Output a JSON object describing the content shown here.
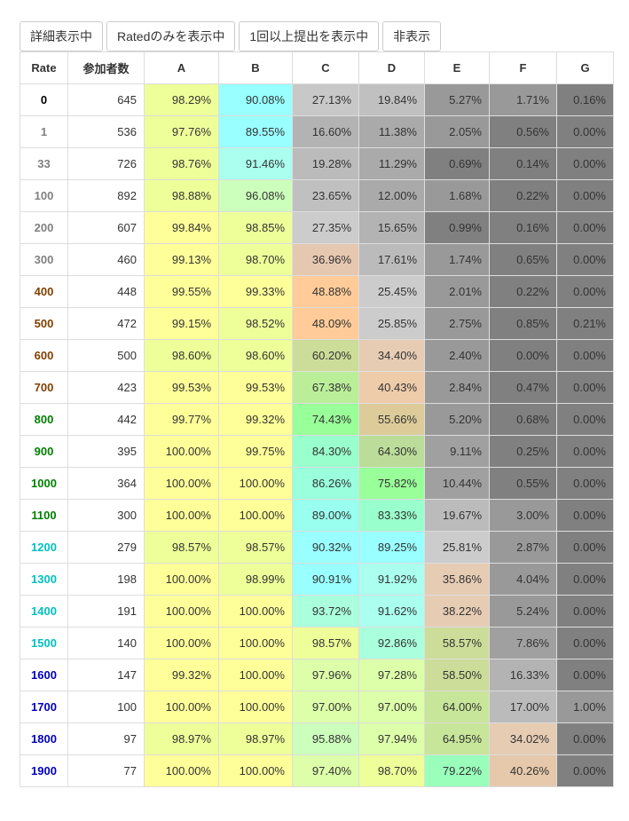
{
  "toolbar": {
    "buttons": [
      {
        "label": "詳細表示中",
        "active": false
      },
      {
        "label": "Ratedのみを表示中",
        "active": false
      },
      {
        "label": "1回以上提出を表示中",
        "active": false
      },
      {
        "label": "非表示",
        "active": false
      }
    ]
  },
  "table": {
    "headers": [
      "Rate",
      "参加者数",
      "A",
      "B",
      "C",
      "D",
      "E",
      "F",
      "G"
    ],
    "rows": [
      {
        "rate": "0",
        "rate_color": "#000000",
        "count": "645",
        "cells": [
          [
            "98.29%",
            "#eeff99"
          ],
          [
            "90.08%",
            "#99ffff"
          ],
          [
            "27.13%",
            "#c8c8c8"
          ],
          [
            "19.84%",
            "#c0c0c0"
          ],
          [
            "5.27%",
            "#999999"
          ],
          [
            "1.71%",
            "#999999"
          ],
          [
            "0.16%",
            "#808080"
          ]
        ]
      },
      {
        "rate": "1",
        "rate_color": "#808080",
        "count": "536",
        "cells": [
          [
            "97.76%",
            "#eeff99"
          ],
          [
            "89.55%",
            "#99ffff"
          ],
          [
            "16.60%",
            "#b3b3b3"
          ],
          [
            "11.38%",
            "#aaaaaa"
          ],
          [
            "2.05%",
            "#999999"
          ],
          [
            "0.56%",
            "#808080"
          ],
          [
            "0.00%",
            "#808080"
          ]
        ]
      },
      {
        "rate": "33",
        "rate_color": "#808080",
        "count": "726",
        "cells": [
          [
            "98.76%",
            "#eeff99"
          ],
          [
            "91.46%",
            "#aaffee"
          ],
          [
            "19.28%",
            "#bbbbbb"
          ],
          [
            "11.29%",
            "#aaaaaa"
          ],
          [
            "0.69%",
            "#808080"
          ],
          [
            "0.14%",
            "#808080"
          ],
          [
            "0.00%",
            "#808080"
          ]
        ]
      },
      {
        "rate": "100",
        "rate_color": "#808080",
        "count": "892",
        "cells": [
          [
            "98.88%",
            "#eeff99"
          ],
          [
            "96.08%",
            "#ccffbb"
          ],
          [
            "23.65%",
            "#c0c0c0"
          ],
          [
            "12.00%",
            "#aaaaaa"
          ],
          [
            "1.68%",
            "#999999"
          ],
          [
            "0.22%",
            "#808080"
          ],
          [
            "0.00%",
            "#808080"
          ]
        ]
      },
      {
        "rate": "200",
        "rate_color": "#808080",
        "count": "607",
        "cells": [
          [
            "99.84%",
            "#ffff99"
          ],
          [
            "98.85%",
            "#eeff99"
          ],
          [
            "27.35%",
            "#cccccc"
          ],
          [
            "15.65%",
            "#b3b3b3"
          ],
          [
            "0.99%",
            "#808080"
          ],
          [
            "0.16%",
            "#808080"
          ],
          [
            "0.00%",
            "#808080"
          ]
        ]
      },
      {
        "rate": "300",
        "rate_color": "#808080",
        "count": "460",
        "cells": [
          [
            "99.13%",
            "#ffff99"
          ],
          [
            "98.70%",
            "#eeff99"
          ],
          [
            "36.96%",
            "#e6c8b0"
          ],
          [
            "17.61%",
            "#bbbbbb"
          ],
          [
            "1.74%",
            "#999999"
          ],
          [
            "0.65%",
            "#808080"
          ],
          [
            "0.00%",
            "#808080"
          ]
        ]
      },
      {
        "rate": "400",
        "rate_color": "#804000",
        "count": "448",
        "cells": [
          [
            "99.55%",
            "#ffff99"
          ],
          [
            "99.33%",
            "#ffff99"
          ],
          [
            "48.88%",
            "#ffcc99"
          ],
          [
            "25.45%",
            "#cccccc"
          ],
          [
            "2.01%",
            "#999999"
          ],
          [
            "0.22%",
            "#808080"
          ],
          [
            "0.00%",
            "#808080"
          ]
        ]
      },
      {
        "rate": "500",
        "rate_color": "#804000",
        "count": "472",
        "cells": [
          [
            "99.15%",
            "#ffff99"
          ],
          [
            "98.52%",
            "#eeff99"
          ],
          [
            "48.09%",
            "#ffcc99"
          ],
          [
            "25.85%",
            "#cccccc"
          ],
          [
            "2.75%",
            "#999999"
          ],
          [
            "0.85%",
            "#808080"
          ],
          [
            "0.21%",
            "#808080"
          ]
        ]
      },
      {
        "rate": "600",
        "rate_color": "#804000",
        "count": "500",
        "cells": [
          [
            "98.60%",
            "#eeff99"
          ],
          [
            "98.60%",
            "#eeff99"
          ],
          [
            "60.20%",
            "#ccdd99"
          ],
          [
            "34.40%",
            "#e6ccb3"
          ],
          [
            "2.40%",
            "#999999"
          ],
          [
            "0.00%",
            "#808080"
          ],
          [
            "0.00%",
            "#808080"
          ]
        ]
      },
      {
        "rate": "700",
        "rate_color": "#804000",
        "count": "423",
        "cells": [
          [
            "99.53%",
            "#ffff99"
          ],
          [
            "99.53%",
            "#ffff99"
          ],
          [
            "67.38%",
            "#bbee99"
          ],
          [
            "40.43%",
            "#eeccaa"
          ],
          [
            "2.84%",
            "#999999"
          ],
          [
            "0.47%",
            "#808080"
          ],
          [
            "0.00%",
            "#808080"
          ]
        ]
      },
      {
        "rate": "800",
        "rate_color": "#008000",
        "count": "442",
        "cells": [
          [
            "99.77%",
            "#ffff99"
          ],
          [
            "99.32%",
            "#ffff99"
          ],
          [
            "74.43%",
            "#99ff99"
          ],
          [
            "55.66%",
            "#ddcc99"
          ],
          [
            "5.20%",
            "#999999"
          ],
          [
            "0.68%",
            "#808080"
          ],
          [
            "0.00%",
            "#808080"
          ]
        ]
      },
      {
        "rate": "900",
        "rate_color": "#008000",
        "count": "395",
        "cells": [
          [
            "100.00%",
            "#ffff99"
          ],
          [
            "99.75%",
            "#ffff99"
          ],
          [
            "84.30%",
            "#99ffcc"
          ],
          [
            "64.30%",
            "#bbdd99"
          ],
          [
            "9.11%",
            "#a0a0a0"
          ],
          [
            "0.25%",
            "#808080"
          ],
          [
            "0.00%",
            "#808080"
          ]
        ]
      },
      {
        "rate": "1000",
        "rate_color": "#008000",
        "count": "364",
        "cells": [
          [
            "100.00%",
            "#ffff99"
          ],
          [
            "100.00%",
            "#ffff99"
          ],
          [
            "86.26%",
            "#99ffdd"
          ],
          [
            "75.82%",
            "#99ff99"
          ],
          [
            "10.44%",
            "#a0a0a0"
          ],
          [
            "0.55%",
            "#808080"
          ],
          [
            "0.00%",
            "#808080"
          ]
        ]
      },
      {
        "rate": "1100",
        "rate_color": "#008000",
        "count": "300",
        "cells": [
          [
            "100.00%",
            "#ffff99"
          ],
          [
            "100.00%",
            "#ffff99"
          ],
          [
            "89.00%",
            "#99ffee"
          ],
          [
            "83.33%",
            "#99ffcc"
          ],
          [
            "19.67%",
            "#bbbbbb"
          ],
          [
            "3.00%",
            "#999999"
          ],
          [
            "0.00%",
            "#808080"
          ]
        ]
      },
      {
        "rate": "1200",
        "rate_color": "#00c0c0",
        "count": "279",
        "cells": [
          [
            "98.57%",
            "#eeff99"
          ],
          [
            "98.57%",
            "#eeff99"
          ],
          [
            "90.32%",
            "#99ffff"
          ],
          [
            "89.25%",
            "#99ffff"
          ],
          [
            "25.81%",
            "#cccccc"
          ],
          [
            "2.87%",
            "#999999"
          ],
          [
            "0.00%",
            "#808080"
          ]
        ]
      },
      {
        "rate": "1300",
        "rate_color": "#00c0c0",
        "count": "198",
        "cells": [
          [
            "100.00%",
            "#ffff99"
          ],
          [
            "98.99%",
            "#eeff99"
          ],
          [
            "90.91%",
            "#99ffff"
          ],
          [
            "91.92%",
            "#aaffee"
          ],
          [
            "35.86%",
            "#e6ccb3"
          ],
          [
            "4.04%",
            "#999999"
          ],
          [
            "0.00%",
            "#808080"
          ]
        ]
      },
      {
        "rate": "1400",
        "rate_color": "#00c0c0",
        "count": "191",
        "cells": [
          [
            "100.00%",
            "#ffff99"
          ],
          [
            "100.00%",
            "#ffff99"
          ],
          [
            "93.72%",
            "#aaffdd"
          ],
          [
            "91.62%",
            "#aaffee"
          ],
          [
            "38.22%",
            "#e6ccb3"
          ],
          [
            "5.24%",
            "#999999"
          ],
          [
            "0.00%",
            "#808080"
          ]
        ]
      },
      {
        "rate": "1500",
        "rate_color": "#00c0c0",
        "count": "140",
        "cells": [
          [
            "100.00%",
            "#ffff99"
          ],
          [
            "100.00%",
            "#ffff99"
          ],
          [
            "98.57%",
            "#eeff99"
          ],
          [
            "92.86%",
            "#aaffdd"
          ],
          [
            "58.57%",
            "#ccdd99"
          ],
          [
            "7.86%",
            "#a0a0a0"
          ],
          [
            "0.00%",
            "#808080"
          ]
        ]
      },
      {
        "rate": "1600",
        "rate_color": "#0000c0",
        "count": "147",
        "cells": [
          [
            "99.32%",
            "#ffff99"
          ],
          [
            "100.00%",
            "#ffff99"
          ],
          [
            "97.96%",
            "#ddffaa"
          ],
          [
            "97.28%",
            "#ddffaa"
          ],
          [
            "58.50%",
            "#ccdd99"
          ],
          [
            "16.33%",
            "#b3b3b3"
          ],
          [
            "0.00%",
            "#808080"
          ]
        ]
      },
      {
        "rate": "1700",
        "rate_color": "#0000c0",
        "count": "100",
        "cells": [
          [
            "100.00%",
            "#ffff99"
          ],
          [
            "100.00%",
            "#ffff99"
          ],
          [
            "97.00%",
            "#ddffaa"
          ],
          [
            "97.00%",
            "#ddffaa"
          ],
          [
            "64.00%",
            "#c8e699"
          ],
          [
            "17.00%",
            "#bbbbbb"
          ],
          [
            "1.00%",
            "#999999"
          ]
        ]
      },
      {
        "rate": "1800",
        "rate_color": "#0000c0",
        "count": "97",
        "cells": [
          [
            "98.97%",
            "#eeff99"
          ],
          [
            "98.97%",
            "#eeff99"
          ],
          [
            "95.88%",
            "#ccffbb"
          ],
          [
            "97.94%",
            "#ddffaa"
          ],
          [
            "64.95%",
            "#c8e699"
          ],
          [
            "34.02%",
            "#e6ccb3"
          ],
          [
            "0.00%",
            "#808080"
          ]
        ]
      },
      {
        "rate": "1900",
        "rate_color": "#0000c0",
        "count": "77",
        "cells": [
          [
            "100.00%",
            "#ffff99"
          ],
          [
            "100.00%",
            "#ffff99"
          ],
          [
            "97.40%",
            "#ddffaa"
          ],
          [
            "98.70%",
            "#eeff99"
          ],
          [
            "79.22%",
            "#99ffbb"
          ],
          [
            "40.26%",
            "#e6c8aa"
          ],
          [
            "0.00%",
            "#808080"
          ]
        ]
      }
    ]
  }
}
